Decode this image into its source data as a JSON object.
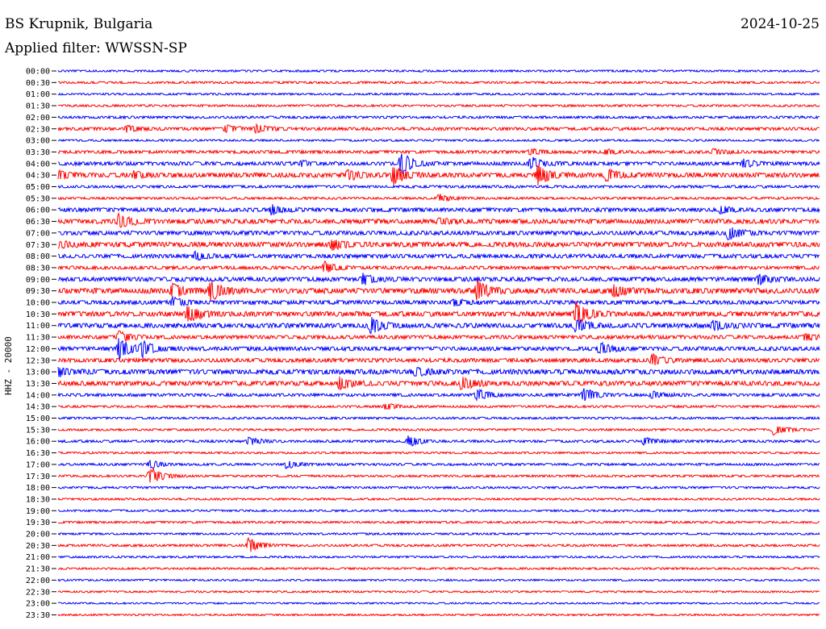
{
  "header": {
    "station": "BS Krupnik, Bulgaria",
    "date": "2024-10-25",
    "filter": "Applied filter: WWSSN-SP"
  },
  "chart_data": {
    "type": "line",
    "title": "BS Krupnik, Bulgaria",
    "ylabel": "HHZ - 20000",
    "colors": [
      "#0000ff",
      "#ff0000"
    ],
    "times": [
      "00:00",
      "00:30",
      "01:00",
      "01:30",
      "02:00",
      "02:30",
      "03:00",
      "03:30",
      "04:00",
      "04:30",
      "05:00",
      "05:30",
      "06:00",
      "06:30",
      "07:00",
      "07:30",
      "08:00",
      "08:30",
      "09:00",
      "09:30",
      "10:00",
      "10:30",
      "11:00",
      "11:30",
      "12:00",
      "12:30",
      "13:00",
      "13:30",
      "14:00",
      "14:30",
      "15:00",
      "15:30",
      "16:00",
      "16:30",
      "17:00",
      "17:30",
      "18:00",
      "18:30",
      "19:00",
      "19:30",
      "20:00",
      "20:30",
      "21:00",
      "21:30",
      "22:00",
      "22:30",
      "23:00",
      "23:30"
    ],
    "noise": [
      1.2,
      1.3,
      1.2,
      1.3,
      1.5,
      1.8,
      1.2,
      1.8,
      2.2,
      2.8,
      1.6,
      1.4,
      2.4,
      2.8,
      2.5,
      3.0,
      2.4,
      2.0,
      2.6,
      3.2,
      2.4,
      3.0,
      2.8,
      2.2,
      2.4,
      2.4,
      3.0,
      2.8,
      1.8,
      1.4,
      1.3,
      1.3,
      1.5,
      1.2,
      1.4,
      1.3,
      1.3,
      1.2,
      1.2,
      1.3,
      1.2,
      1.4,
      1.2,
      1.2,
      1.1,
      1.1,
      1.0,
      1.1
    ],
    "events": [
      [],
      [],
      [],
      [],
      [],
      [
        [
          0.09,
          4
        ],
        [
          0.22,
          5
        ],
        [
          0.26,
          6
        ]
      ],
      [],
      [
        [
          0.62,
          4
        ],
        [
          0.72,
          3
        ],
        [
          0.86,
          4
        ]
      ],
      [
        [
          0.32,
          3
        ],
        [
          0.45,
          14
        ],
        [
          0.62,
          8
        ],
        [
          0.9,
          5
        ]
      ],
      [
        [
          0.0,
          5
        ],
        [
          0.1,
          4
        ],
        [
          0.38,
          6
        ],
        [
          0.44,
          12
        ],
        [
          0.63,
          14
        ],
        [
          0.72,
          8
        ]
      ],
      [],
      [
        [
          0.5,
          5
        ]
      ],
      [
        [
          0.28,
          6
        ],
        [
          0.87,
          4
        ]
      ],
      [
        [
          0.08,
          9
        ],
        [
          0.5,
          4
        ]
      ],
      [
        [
          0.88,
          9
        ]
      ],
      [
        [
          0.0,
          4
        ],
        [
          0.36,
          6
        ]
      ],
      [
        [
          0.18,
          5
        ]
      ],
      [
        [
          0.35,
          7
        ]
      ],
      [
        [
          0.4,
          6
        ],
        [
          0.92,
          6
        ]
      ],
      [
        [
          0.15,
          9
        ],
        [
          0.2,
          12
        ],
        [
          0.55,
          12
        ],
        [
          0.73,
          7
        ]
      ],
      [
        [
          0.15,
          6
        ],
        [
          0.52,
          4
        ]
      ],
      [
        [
          0.17,
          10
        ],
        [
          0.68,
          16
        ]
      ],
      [
        [
          0.41,
          11
        ],
        [
          0.68,
          8
        ],
        [
          0.86,
          7
        ]
      ],
      [
        [
          0.08,
          7
        ],
        [
          0.98,
          4
        ]
      ],
      [
        [
          0.08,
          14
        ],
        [
          0.11,
          9
        ],
        [
          0.71,
          8
        ]
      ],
      [
        [
          0.78,
          7
        ]
      ],
      [
        [
          0.0,
          5
        ],
        [
          0.47,
          5
        ]
      ],
      [
        [
          0.37,
          7
        ],
        [
          0.53,
          8
        ]
      ],
      [
        [
          0.55,
          8
        ],
        [
          0.69,
          9
        ],
        [
          0.78,
          5
        ]
      ],
      [
        [
          0.43,
          4
        ]
      ],
      [],
      [
        [
          0.94,
          7
        ]
      ],
      [
        [
          0.25,
          5
        ],
        [
          0.46,
          7
        ],
        [
          0.77,
          5
        ]
      ],
      [],
      [
        [
          0.12,
          5
        ],
        [
          0.3,
          5
        ]
      ],
      [
        [
          0.12,
          13
        ]
      ],
      [],
      [],
      [],
      [],
      [],
      [
        [
          0.25,
          9
        ]
      ],
      [],
      [],
      [],
      [],
      [],
      []
    ]
  }
}
